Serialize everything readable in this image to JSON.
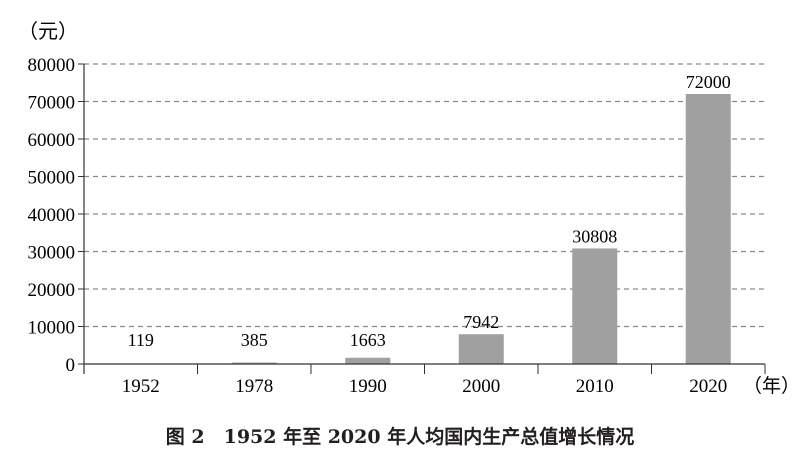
{
  "chart_data": {
    "type": "bar",
    "title": "图 2　1952 年至 2020 年人均国内生产总值增长情况",
    "ylabel": "（元）",
    "xlabel": "（年）",
    "categories": [
      "1952",
      "1978",
      "1990",
      "2000",
      "2010",
      "2020"
    ],
    "values": [
      119,
      385,
      1663,
      7942,
      30808,
      72000
    ],
    "data_labels": [
      "119",
      "385",
      "1663",
      "7942",
      "30808",
      "72000"
    ],
    "ylim": [
      0,
      80000
    ],
    "yticks": [
      "0",
      "10000",
      "20000",
      "30000",
      "40000",
      "50000",
      "60000",
      "70000",
      "80000"
    ],
    "grid": true,
    "bar_color": "#a0a0a0"
  }
}
